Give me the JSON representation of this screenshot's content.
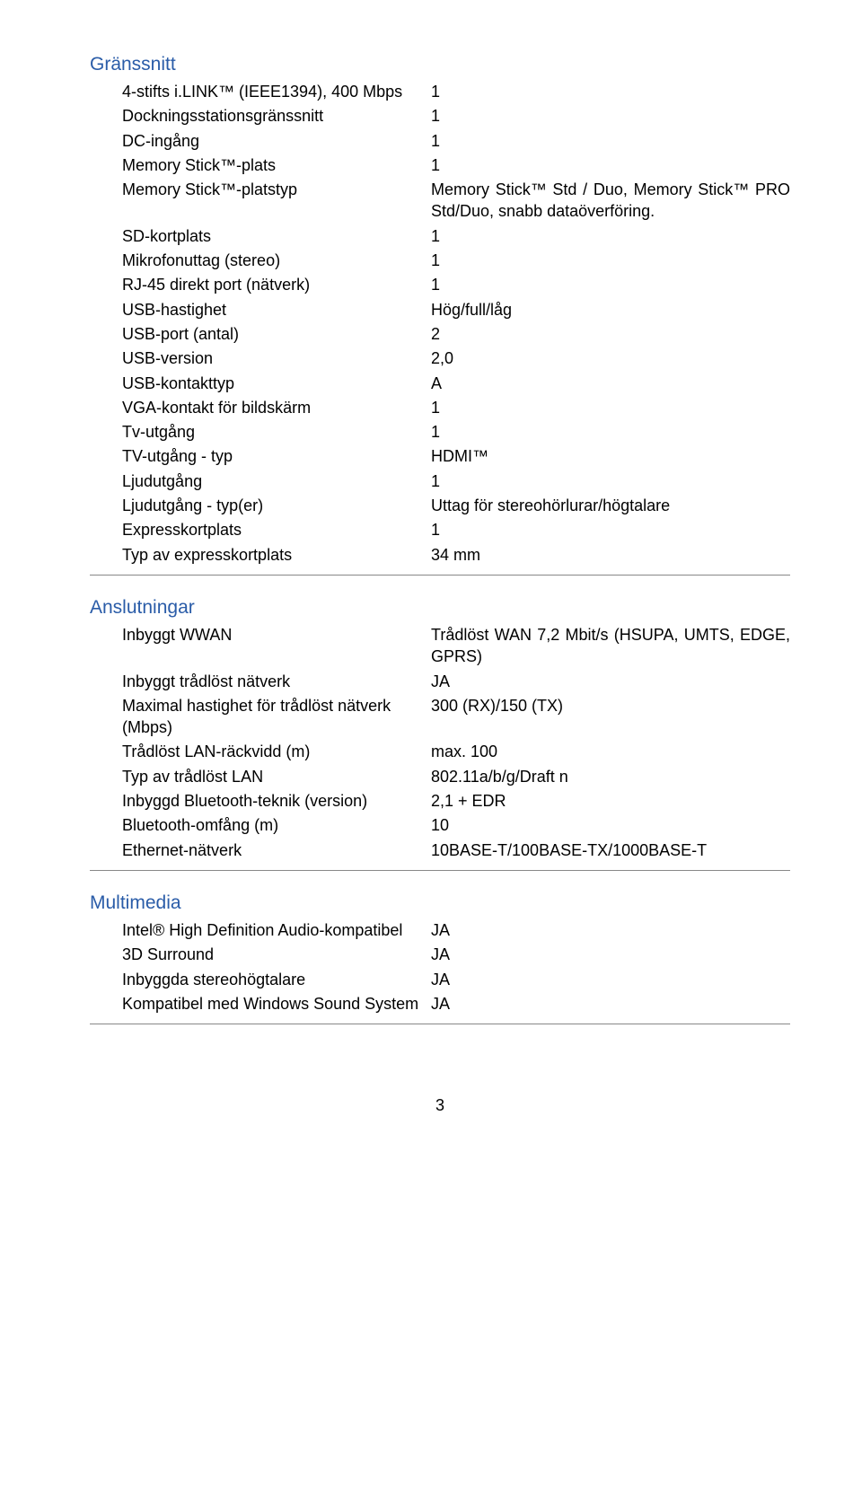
{
  "colors": {
    "heading": "#2a5ca8",
    "text": "#000000",
    "rule": "#888888",
    "background": "#ffffff"
  },
  "page_number": "3",
  "sections": [
    {
      "title": "Gränssnitt",
      "rows": [
        {
          "label": "4-stifts i.LINK™ (IEEE1394), 400 Mbps",
          "value": "1"
        },
        {
          "label": "Dockningsstationsgränssnitt",
          "value": "1"
        },
        {
          "label": "DC-ingång",
          "value": "1"
        },
        {
          "label": "Memory Stick™-plats",
          "value": "1"
        },
        {
          "label": "Memory Stick™-platstyp",
          "value": "Memory Stick™ Std / Duo, Memory Stick™ PRO Std/Duo, snabb dataöverföring."
        },
        {
          "label": "SD-kortplats",
          "value": "1"
        },
        {
          "label": "Mikrofonuttag (stereo)",
          "value": "1"
        },
        {
          "label": "RJ-45 direkt port (nätverk)",
          "value": "1"
        },
        {
          "label": "USB-hastighet",
          "value": "Hög/full/låg"
        },
        {
          "label": "USB-port (antal)",
          "value": "2"
        },
        {
          "label": "USB-version",
          "value": "2,0"
        },
        {
          "label": "USB-kontakttyp",
          "value": "A"
        },
        {
          "label": "VGA-kontakt för bildskärm",
          "value": "1"
        },
        {
          "label": "Tv-utgång",
          "value": "1"
        },
        {
          "label": "TV-utgång - typ",
          "value": "HDMI™"
        },
        {
          "label": "Ljudutgång",
          "value": "1"
        },
        {
          "label": "Ljudutgång - typ(er)",
          "value": "Uttag för stereohörlurar/högtalare"
        },
        {
          "label": "Expresskortplats",
          "value": "1"
        },
        {
          "label": "Typ av expresskortplats",
          "value": "34 mm"
        }
      ]
    },
    {
      "title": "Anslutningar",
      "rows": [
        {
          "label": "Inbyggt WWAN",
          "value": "Trådlöst WAN 7,2 Mbit/s (HSUPA, UMTS, EDGE, GPRS)"
        },
        {
          "label": "Inbyggt trådlöst nätverk",
          "value": "JA"
        },
        {
          "label": "Maximal hastighet för trådlöst nätverk (Mbps)",
          "value": "300 (RX)/150 (TX)"
        },
        {
          "label": "Trådlöst LAN-räckvidd (m)",
          "value": "max. 100"
        },
        {
          "label": "Typ av trådlöst LAN",
          "value": "802.11a/b/g/Draft n"
        },
        {
          "label": "Inbyggd Bluetooth-teknik (version)",
          "value": "2,1 + EDR"
        },
        {
          "label": "Bluetooth-omfång (m)",
          "value": "10"
        },
        {
          "label": "Ethernet-nätverk",
          "value": "10BASE-T/100BASE-TX/1000BASE-T"
        }
      ]
    },
    {
      "title": "Multimedia",
      "rows": [
        {
          "label": "Intel® High Definition Audio-kompatibel",
          "value": "JA"
        },
        {
          "label": "3D Surround",
          "value": "JA"
        },
        {
          "label": "Inbyggda stereohögtalare",
          "value": "JA"
        },
        {
          "label": "Kompatibel med Windows Sound System",
          "value": "JA"
        }
      ]
    }
  ]
}
